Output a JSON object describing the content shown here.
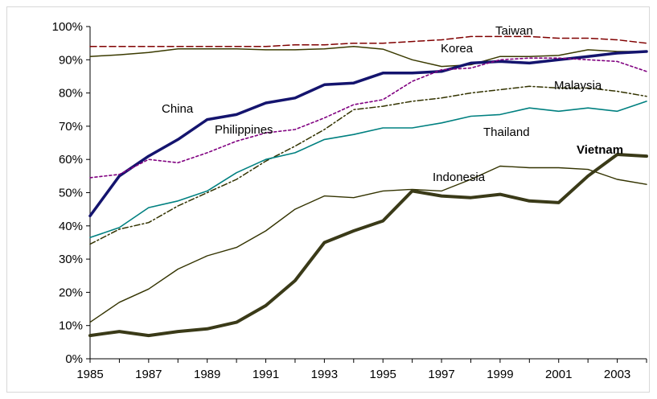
{
  "chart_data": {
    "type": "line",
    "title": "",
    "xlabel": "",
    "ylabel": "",
    "x": [
      1985,
      1986,
      1987,
      1988,
      1989,
      1990,
      1991,
      1992,
      1993,
      1994,
      1995,
      1996,
      1997,
      1998,
      1999,
      2000,
      2001,
      2002,
      2003,
      2004
    ],
    "xlim": [
      1985,
      2004
    ],
    "ylim": [
      0,
      100
    ],
    "x_ticks": [
      "1985",
      "1987",
      "1989",
      "1991",
      "1993",
      "1995",
      "1997",
      "1999",
      "2001",
      "2003"
    ],
    "y_ticks": [
      "0%",
      "10%",
      "20%",
      "30%",
      "40%",
      "50%",
      "60%",
      "70%",
      "80%",
      "90%",
      "100%"
    ],
    "grid": false,
    "legend": "none",
    "series": [
      {
        "name": "Taiwan",
        "color": "#800000",
        "dash": "8,4",
        "width": 1.5,
        "bold_label": false,
        "values": [
          94,
          94,
          94,
          94,
          94,
          94,
          94,
          94.5,
          94.5,
          95,
          95,
          95.5,
          96,
          97,
          97,
          97,
          96.5,
          96.5,
          96,
          95
        ]
      },
      {
        "name": "Korea",
        "color": "#3a3a00",
        "dash": "",
        "width": 1.5,
        "bold_label": false,
        "values": [
          91,
          91.5,
          92.2,
          93.3,
          93.3,
          93.3,
          93,
          93,
          93.3,
          94,
          93.2,
          90,
          88,
          88.5,
          91,
          91,
          91.3,
          93,
          92.5,
          92.5
        ]
      },
      {
        "name": "Malaysia",
        "color": "#333300",
        "dash": "7,3,2,3",
        "width": 1.5,
        "bold_label": false,
        "values": [
          34.5,
          39,
          41,
          46,
          50,
          54,
          59.5,
          64,
          69,
          75,
          76,
          77.5,
          78.5,
          80,
          81,
          82,
          81.5,
          81.5,
          80.5,
          79
        ]
      },
      {
        "name": "China",
        "color": "#14146e",
        "dash": "",
        "width": 3.5,
        "bold_label": false,
        "values": [
          43,
          55,
          61,
          66,
          72,
          73.5,
          77,
          78.5,
          82.5,
          83,
          86,
          86,
          86.5,
          89,
          89.5,
          89,
          90,
          91,
          92,
          92.5
        ]
      },
      {
        "name": "Philippines",
        "color": "#800080",
        "dash": "3,3",
        "width": 1.6,
        "bold_label": false,
        "values": [
          54.5,
          55.5,
          60,
          59,
          62,
          65.5,
          68,
          69,
          72.5,
          76.5,
          78,
          83.5,
          87,
          87.5,
          90,
          90.5,
          90.5,
          90,
          89.5,
          86.5
        ]
      },
      {
        "name": "Thailand",
        "color": "#008080",
        "dash": "",
        "width": 1.6,
        "bold_label": false,
        "values": [
          36.5,
          39.5,
          45.5,
          47.5,
          50.5,
          56,
          60,
          62,
          66,
          67.5,
          69.5,
          69.5,
          71,
          73,
          73.5,
          75.5,
          74.5,
          75.5,
          74.5,
          77.5
        ]
      },
      {
        "name": "Indonesia",
        "color": "#333300",
        "dash": "",
        "width": 1.4,
        "bold_label": false,
        "values": [
          11,
          17,
          21,
          27,
          31,
          33.5,
          38.5,
          45,
          49,
          48.5,
          50.5,
          51,
          50.5,
          54,
          58,
          57.5,
          57.5,
          57,
          54,
          52.5
        ]
      },
      {
        "name": "Vietnam",
        "color": "#3a3a18",
        "dash": "",
        "width": 4,
        "bold_label": true,
        "values": [
          7,
          8.2,
          7,
          8.2,
          9,
          11,
          16,
          23.5,
          35,
          38.5,
          41.5,
          50.5,
          49,
          48.5,
          49.5,
          47.5,
          47,
          55,
          61.5,
          61
        ]
      }
    ]
  }
}
